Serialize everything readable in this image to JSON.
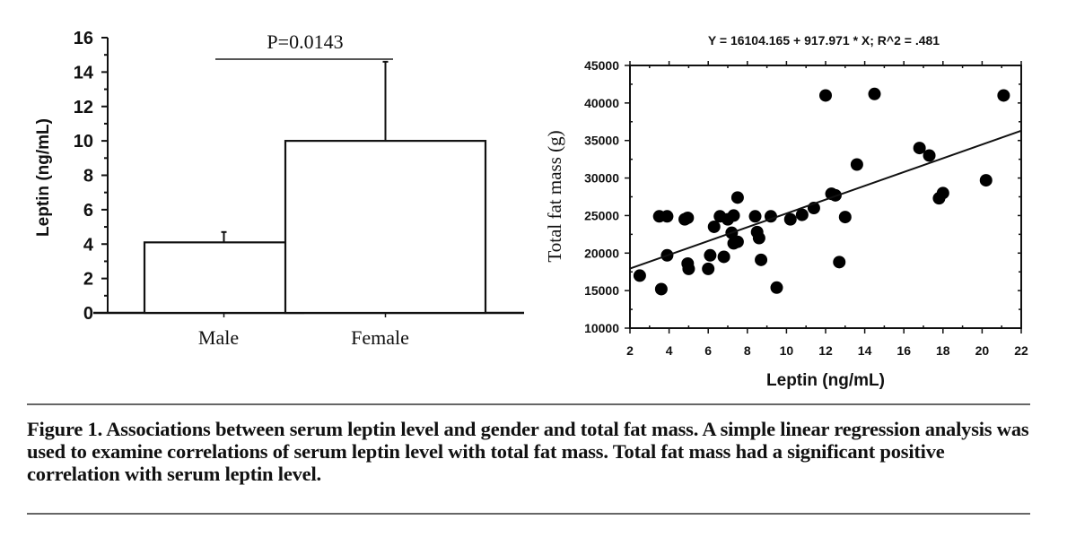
{
  "chart_data": [
    {
      "type": "bar",
      "title": "",
      "xlabel": "",
      "ylabel": "Leptin (ng/mL)",
      "categories": [
        "Male",
        "Female"
      ],
      "values": [
        4.1,
        10.0
      ],
      "error_upper": [
        4.7,
        14.6
      ],
      "ylim": [
        0,
        16
      ],
      "yticks": [
        "0",
        "2",
        "4",
        "6",
        "8",
        "10",
        "12",
        "14",
        "16"
      ],
      "annotation": "P=0.0143",
      "grid": false
    },
    {
      "type": "scatter",
      "title": "Y = 16104.165 + 917.971 * X; R^2 = .481",
      "xlabel": "Leptin (ng/mL)",
      "ylabel": "Total fat mass (g)",
      "xlim": [
        2,
        22
      ],
      "ylim": [
        10000,
        45000
      ],
      "xticks": [
        "2",
        "4",
        "6",
        "8",
        "10",
        "12",
        "14",
        "16",
        "18",
        "20",
        "22"
      ],
      "yticks": [
        "10000",
        "15000",
        "20000",
        "25000",
        "30000",
        "35000",
        "40000",
        "45000"
      ],
      "regression": {
        "intercept": 16104.165,
        "slope": 917.971
      },
      "grid": false,
      "points": [
        [
          2.5,
          17000
        ],
        [
          3.5,
          24900
        ],
        [
          3.9,
          24900
        ],
        [
          3.6,
          15200
        ],
        [
          3.9,
          19700
        ],
        [
          4.8,
          24500
        ],
        [
          4.95,
          24700
        ],
        [
          4.95,
          18600
        ],
        [
          5.0,
          17900
        ],
        [
          6.0,
          17900
        ],
        [
          6.1,
          19700
        ],
        [
          6.3,
          23500
        ],
        [
          6.6,
          24900
        ],
        [
          6.8,
          19500
        ],
        [
          7.0,
          24500
        ],
        [
          7.2,
          22700
        ],
        [
          7.3,
          25000
        ],
        [
          7.3,
          21300
        ],
        [
          7.5,
          21500
        ],
        [
          7.5,
          27400
        ],
        [
          8.4,
          24900
        ],
        [
          8.5,
          22800
        ],
        [
          8.6,
          22000
        ],
        [
          8.7,
          19100
        ],
        [
          9.2,
          24900
        ],
        [
          9.5,
          15400
        ],
        [
          10.2,
          24500
        ],
        [
          10.8,
          25100
        ],
        [
          11.4,
          26000
        ],
        [
          12.0,
          41000
        ],
        [
          12.3,
          27900
        ],
        [
          12.5,
          27700
        ],
        [
          12.7,
          18800
        ],
        [
          13.0,
          24800
        ],
        [
          13.6,
          31800
        ],
        [
          14.5,
          41200
        ],
        [
          16.8,
          34000
        ],
        [
          17.3,
          33000
        ],
        [
          17.8,
          27300
        ],
        [
          18.0,
          28000
        ],
        [
          20.2,
          29700
        ],
        [
          21.1,
          41000
        ]
      ]
    }
  ],
  "caption": "Figure 1. Associations between serum leptin level and gender and total fat mass. A simple linear regression analysis was used to examine correlations of serum leptin level with total fat mass. Total fat mass had a significant positive correlation with serum leptin level."
}
